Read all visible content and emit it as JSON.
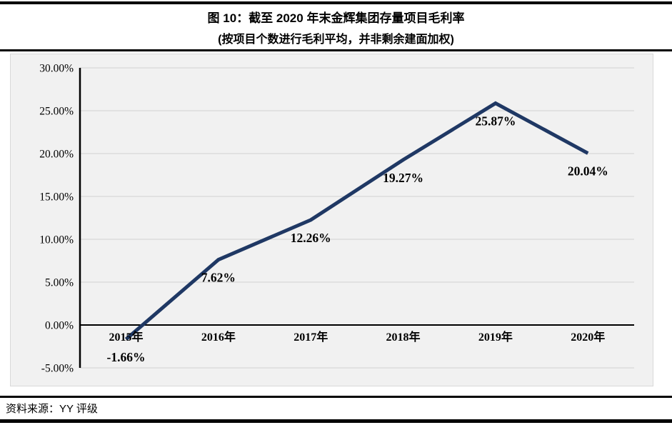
{
  "header": {
    "title": "图 10：截至 2020 年末金辉集团存量项目毛利率",
    "subtitle": "(按项目个数进行毛利平均，并非剩余建面加权)"
  },
  "footer": {
    "source": "资料来源：YY 评级"
  },
  "chart_data": {
    "type": "line",
    "title": "图 10：截至 2020 年末金辉集团存量项目毛利率",
    "subtitle": "(按项目个数进行毛利平均，并非剩余建面加权)",
    "categories": [
      "2015年",
      "2016年",
      "2017年",
      "2018年",
      "2019年",
      "2020年"
    ],
    "series": [
      {
        "name": "存量项目毛利率",
        "values": [
          -1.66,
          7.62,
          12.26,
          19.27,
          25.87,
          20.04
        ],
        "data_labels": [
          "-1.66%",
          "7.62%",
          "12.26%",
          "19.27%",
          "25.87%",
          "20.04%"
        ]
      }
    ],
    "xlabel": "",
    "ylabel": "",
    "ylim": [
      -5,
      30
    ],
    "y_tick_step": 5,
    "y_ticks": [
      30,
      25,
      20,
      15,
      10,
      5,
      0,
      -5
    ],
    "y_tick_labels": [
      "30.00%",
      "25.00%",
      "20.00%",
      "15.00%",
      "10.00%",
      "5.00%",
      "0.00%",
      "-5.00%"
    ],
    "grid": true,
    "legend_position": "none",
    "colors": {
      "line": "#1f3864",
      "plot_background": "#f1f1f1",
      "gridline": "#dcdcdc",
      "axis": "#000000"
    }
  }
}
